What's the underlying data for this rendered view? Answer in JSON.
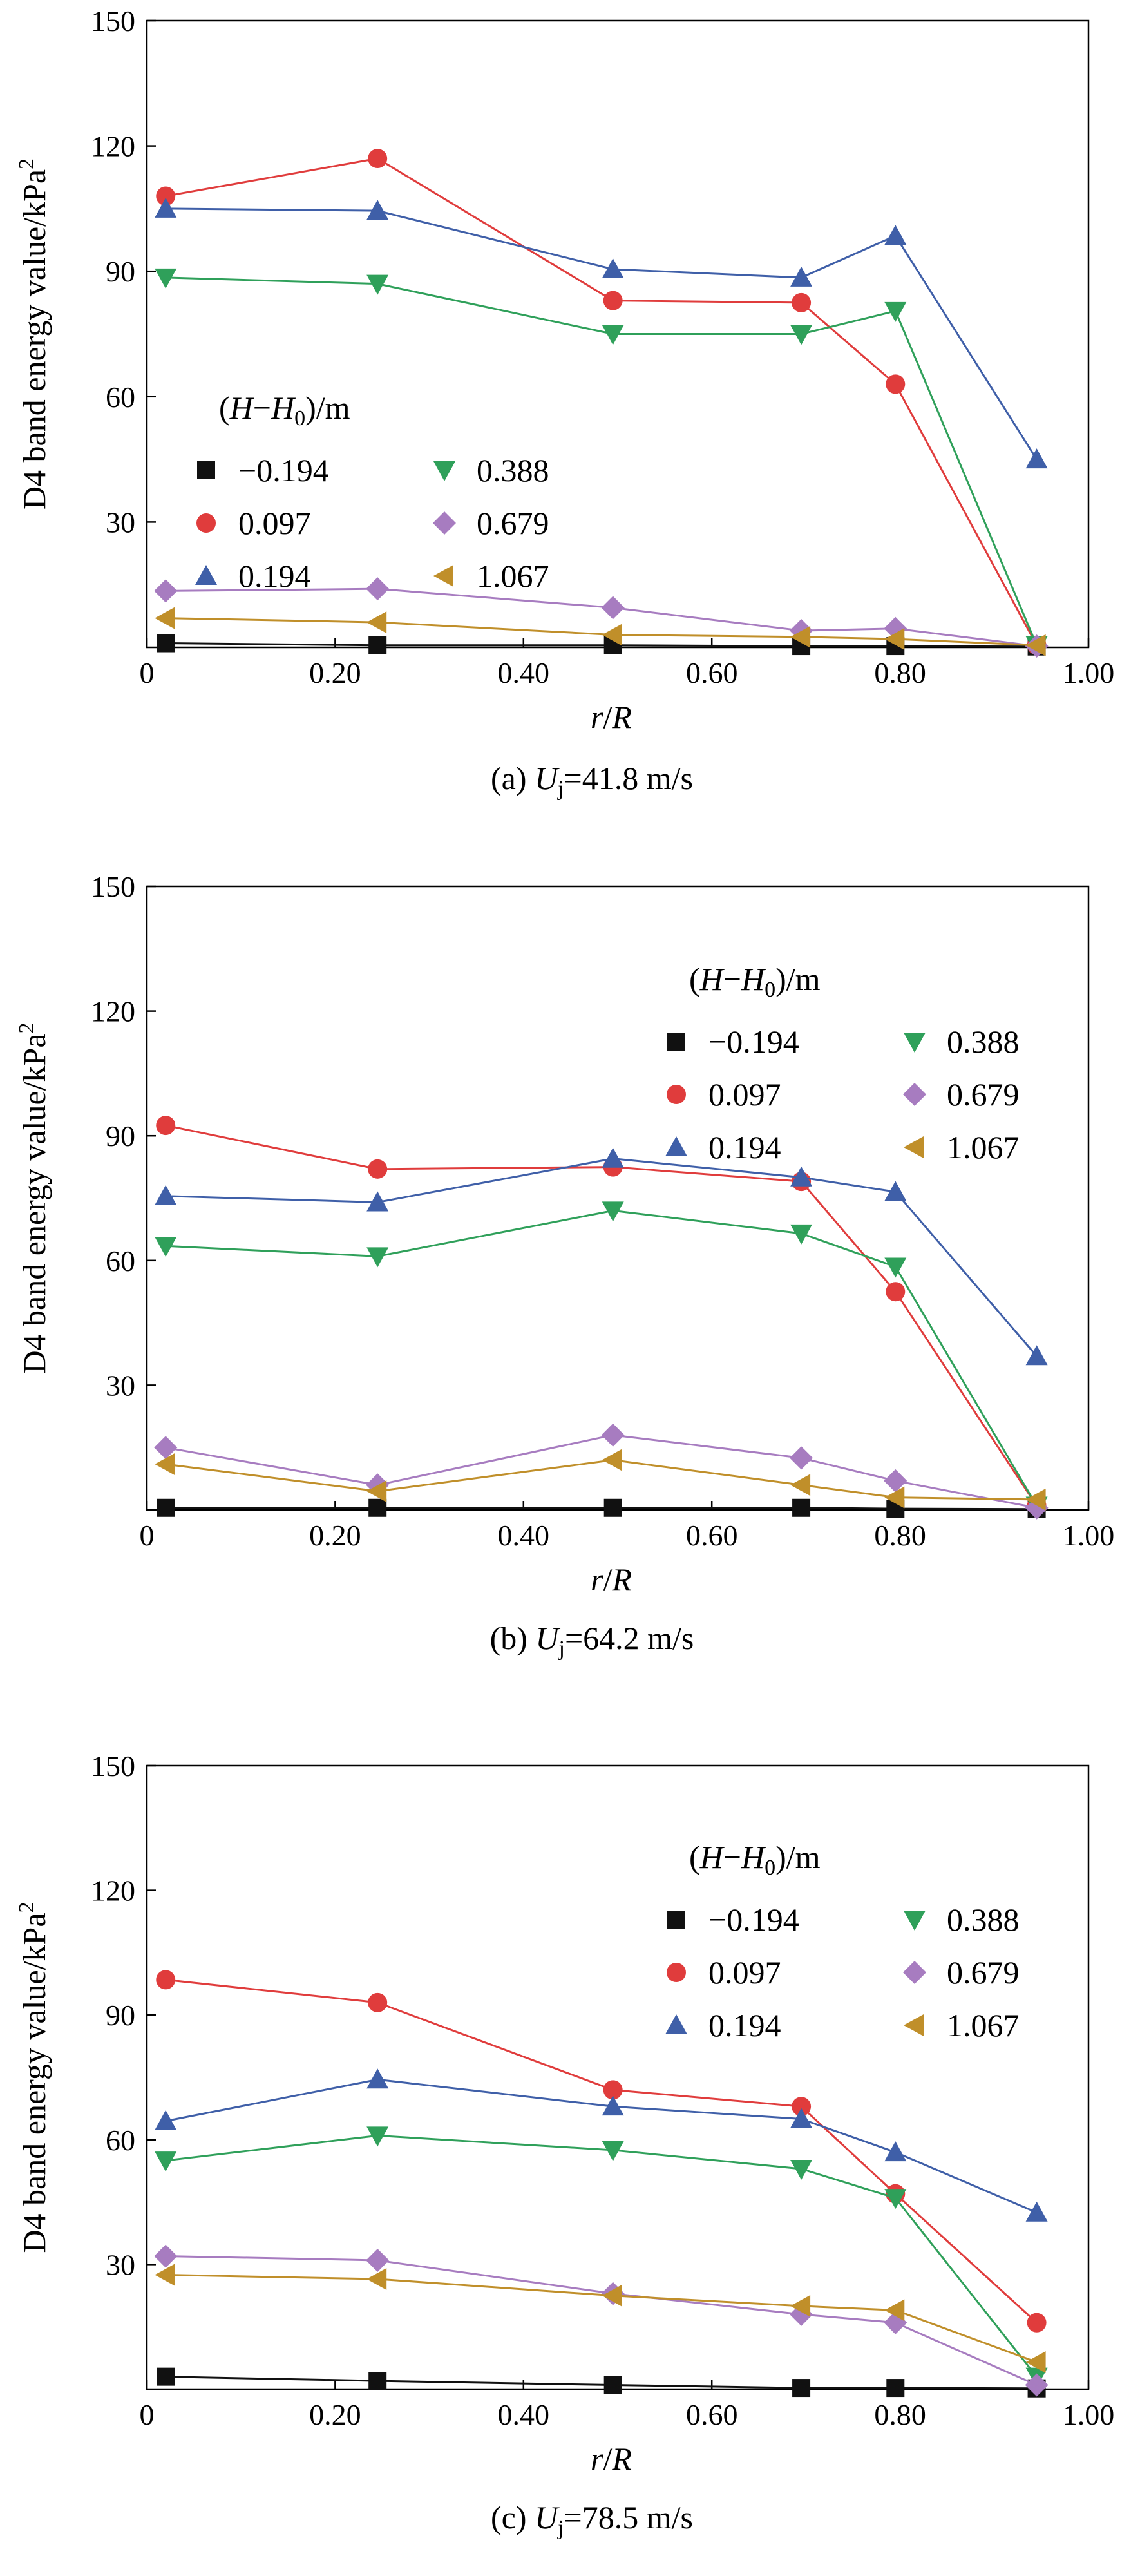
{
  "figure": {
    "y_axis_label": "D4 band energy value/kPa",
    "y_axis_label_superscript": "2",
    "x_axis_label": "r/R",
    "legend_title": "(H−H0)/m",
    "legend_title_parts": [
      "(",
      "H",
      "−",
      "H",
      "0",
      ")/m"
    ]
  },
  "chart_data": [
    {
      "type": "line",
      "caption": "(a) Uj=41.8 m/s",
      "caption_parts": [
        "(a) ",
        "U",
        "j",
        "=41.8 m/s"
      ],
      "xlabel": "r/R",
      "ylabel": "D4 band energy value/kPa2",
      "xlim": [
        0,
        1.0
      ],
      "ylim": [
        0,
        150
      ],
      "xticks": [
        "0",
        "0.20",
        "0.40",
        "0.60",
        "0.80",
        "1.00"
      ],
      "yticks": [
        "30",
        "60",
        "90",
        "120",
        "150"
      ],
      "legend_position": "left-middle",
      "x": [
        0.02,
        0.245,
        0.495,
        0.695,
        0.795,
        0.945
      ],
      "series": [
        {
          "name": "−0.194",
          "marker": "square",
          "color": "#111111",
          "values": [
            1,
            0.5,
            0.5,
            0.3,
            0.3,
            0.2
          ]
        },
        {
          "name": "0.097",
          "marker": "circle",
          "color": "#e03c3c",
          "values": [
            108,
            117,
            83,
            82.5,
            63,
            0.5
          ]
        },
        {
          "name": "0.194",
          "marker": "triangle-up",
          "color": "#3f5fa8",
          "values": [
            105,
            104.5,
            90.5,
            88.5,
            98.5,
            45
          ]
        },
        {
          "name": "0.388",
          "marker": "triangle-down",
          "color": "#2fa05a",
          "values": [
            88.5,
            87,
            75,
            75,
            80.5,
            0.5
          ]
        },
        {
          "name": "0.679",
          "marker": "diamond",
          "color": "#a77cc0",
          "values": [
            13.5,
            14,
            9.5,
            4,
            4.5,
            0.3
          ]
        },
        {
          "name": "1.067",
          "marker": "triangle-left",
          "color": "#c08f2a",
          "values": [
            7,
            6,
            3,
            2.5,
            2,
            0.5
          ]
        }
      ]
    },
    {
      "type": "line",
      "caption": "(b) Uj=64.2 m/s",
      "caption_parts": [
        "(b)  ",
        "U",
        "j",
        "=64.2 m/s"
      ],
      "xlabel": "r/R",
      "ylabel": "D4 band energy value/kPa2",
      "xlim": [
        0,
        1.0
      ],
      "ylim": [
        0,
        150
      ],
      "xticks": [
        "0",
        "0.20",
        "0.40",
        "0.60",
        "0.80",
        "1.00"
      ],
      "yticks": [
        "30",
        "60",
        "90",
        "120",
        "150"
      ],
      "legend_position": "top-right",
      "x": [
        0.02,
        0.245,
        0.495,
        0.695,
        0.795,
        0.945
      ],
      "series": [
        {
          "name": "−0.194",
          "marker": "square",
          "color": "#111111",
          "values": [
            0.5,
            0.5,
            0.5,
            0.5,
            0.3,
            0.2
          ]
        },
        {
          "name": "0.097",
          "marker": "circle",
          "color": "#e03c3c",
          "values": [
            92.5,
            82,
            82.5,
            79,
            52.5,
            1
          ]
        },
        {
          "name": "0.194",
          "marker": "triangle-up",
          "color": "#3f5fa8",
          "values": [
            75.5,
            74,
            84.5,
            80,
            76.5,
            37
          ]
        },
        {
          "name": "0.388",
          "marker": "triangle-down",
          "color": "#2fa05a",
          "values": [
            63.5,
            61,
            72,
            66.5,
            58.5,
            1
          ]
        },
        {
          "name": "0.679",
          "marker": "diamond",
          "color": "#a77cc0",
          "values": [
            15,
            6,
            18,
            12.5,
            7,
            0.5
          ]
        },
        {
          "name": "1.067",
          "marker": "triangle-left",
          "color": "#c08f2a",
          "values": [
            11,
            4.5,
            12,
            6,
            3,
            2.5
          ]
        }
      ]
    },
    {
      "type": "line",
      "caption": "(c) Uj=78.5 m/s",
      "caption_parts": [
        "(c)  ",
        "U",
        "j",
        "=78.5 m/s"
      ],
      "xlabel": "r/R",
      "ylabel": "D4 band energy value/kPa2",
      "xlim": [
        0,
        1.0
      ],
      "ylim": [
        0,
        150
      ],
      "xticks": [
        "0",
        "0.20",
        "0.40",
        "0.60",
        "0.80",
        "1.00"
      ],
      "yticks": [
        "30",
        "60",
        "90",
        "120",
        "150"
      ],
      "legend_position": "top-right",
      "x": [
        0.02,
        0.245,
        0.495,
        0.695,
        0.795,
        0.945
      ],
      "series": [
        {
          "name": "−0.194",
          "marker": "square",
          "color": "#111111",
          "values": [
            3,
            2,
            1,
            0.3,
            0.3,
            0.2
          ]
        },
        {
          "name": "0.097",
          "marker": "circle",
          "color": "#e03c3c",
          "values": [
            98.5,
            93,
            72,
            68,
            47,
            16
          ]
        },
        {
          "name": "0.194",
          "marker": "triangle-up",
          "color": "#3f5fa8",
          "values": [
            64.5,
            74.5,
            68,
            65,
            57,
            42.5
          ]
        },
        {
          "name": "0.388",
          "marker": "triangle-down",
          "color": "#2fa05a",
          "values": [
            55,
            61,
            57.5,
            53,
            46,
            3
          ]
        },
        {
          "name": "0.679",
          "marker": "diamond",
          "color": "#a77cc0",
          "values": [
            32,
            31,
            23,
            18,
            16,
            1
          ]
        },
        {
          "name": "1.067",
          "marker": "triangle-left",
          "color": "#c08f2a",
          "values": [
            27.5,
            26.5,
            22.5,
            20,
            19,
            6.5
          ]
        }
      ]
    }
  ]
}
